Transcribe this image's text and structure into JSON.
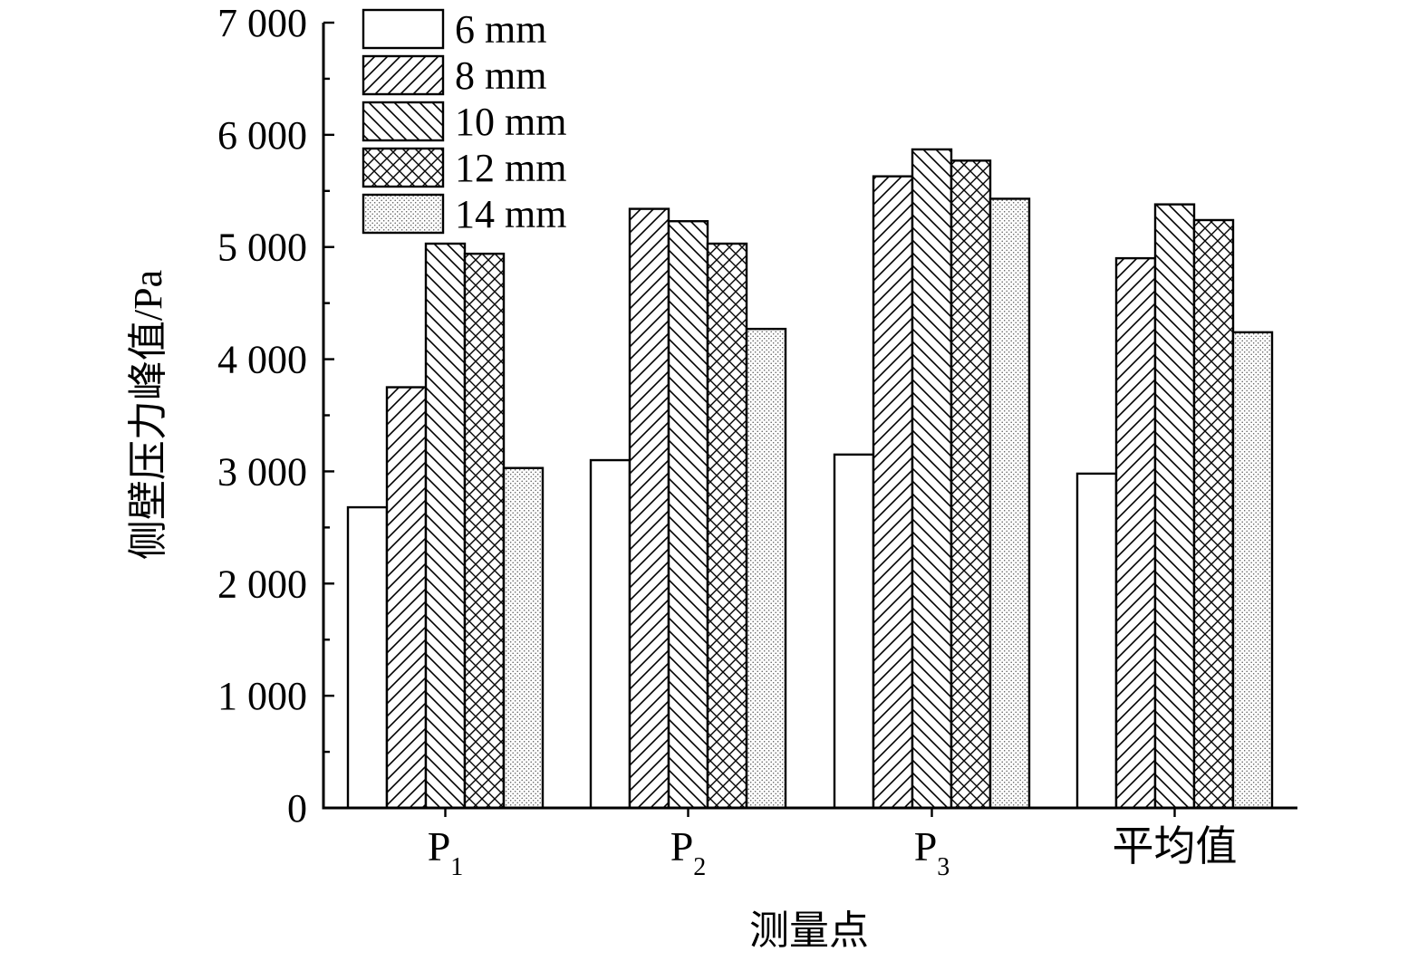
{
  "chart_data": {
    "type": "bar",
    "xlabel": "测量点",
    "ylabel": "侧壁压力峰值/Pa",
    "ylim": [
      0,
      7000
    ],
    "yticks": [
      {
        "value": 0,
        "label": "0"
      },
      {
        "value": 1000,
        "label": "1 000"
      },
      {
        "value": 2000,
        "label": "2 000"
      },
      {
        "value": 3000,
        "label": "3 000"
      },
      {
        "value": 4000,
        "label": "4 000"
      },
      {
        "value": 5000,
        "label": "5 000"
      },
      {
        "value": 6000,
        "label": "6 000"
      },
      {
        "value": 7000,
        "label": "7 000"
      }
    ],
    "categories": [
      {
        "base": "P",
        "sub": "1"
      },
      {
        "base": "P",
        "sub": "2"
      },
      {
        "base": "P",
        "sub": "3"
      },
      {
        "base": "平均值",
        "sub": ""
      }
    ],
    "series": [
      {
        "name": "6 mm",
        "pattern": "blank",
        "values": [
          2680,
          3100,
          3150,
          2980
        ]
      },
      {
        "name": "8 mm",
        "pattern": "forward-hatch",
        "values": [
          3750,
          5340,
          5630,
          4900
        ]
      },
      {
        "name": "10 mm",
        "pattern": "back-hatch",
        "values": [
          5030,
          5230,
          5870,
          5380
        ]
      },
      {
        "name": "12 mm",
        "pattern": "cross-hatch",
        "values": [
          4940,
          5030,
          5770,
          5240
        ]
      },
      {
        "name": "14 mm",
        "pattern": "dots",
        "values": [
          3030,
          4270,
          5430,
          4240
        ]
      }
    ],
    "legend_position": "top-left",
    "grid": false
  }
}
